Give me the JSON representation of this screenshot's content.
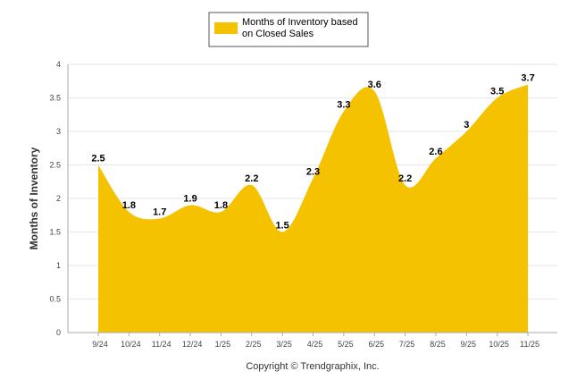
{
  "chart_data": {
    "type": "area",
    "title": "",
    "xlabel": "",
    "ylabel": "Months of Inventory",
    "ylim": [
      0,
      4
    ],
    "yticks": [
      "0",
      "0.5",
      "1",
      "1.5",
      "2",
      "2.5",
      "3",
      "3.5",
      "4"
    ],
    "categories": [
      "9/24",
      "10/24",
      "11/24",
      "12/24",
      "1/25",
      "2/25",
      "3/25",
      "4/25",
      "5/25",
      "6/25",
      "7/25",
      "8/25",
      "9/25",
      "10/25",
      "11/25"
    ],
    "series": [
      {
        "name": "Months of Inventory based on Closed Sales",
        "values": [
          2.5,
          1.8,
          1.7,
          1.9,
          1.8,
          2.2,
          1.5,
          2.3,
          3.3,
          3.6,
          2.2,
          2.6,
          3,
          3.5,
          3.7
        ],
        "labels": [
          "2.5",
          "1.8",
          "1.7",
          "1.9",
          "1.8",
          "2.2",
          "1.5",
          "2.3",
          "3.3",
          "3.6",
          "2.2",
          "2.6",
          "3",
          "3.5",
          "3.7"
        ],
        "color": "#F5C200"
      }
    ],
    "legend": {
      "position": "top-center",
      "line1": "Months of Inventory based",
      "line2": "on Closed Sales"
    },
    "grid": true
  },
  "footer": {
    "copyright": "Copyright © Trendgraphix, Inc."
  }
}
